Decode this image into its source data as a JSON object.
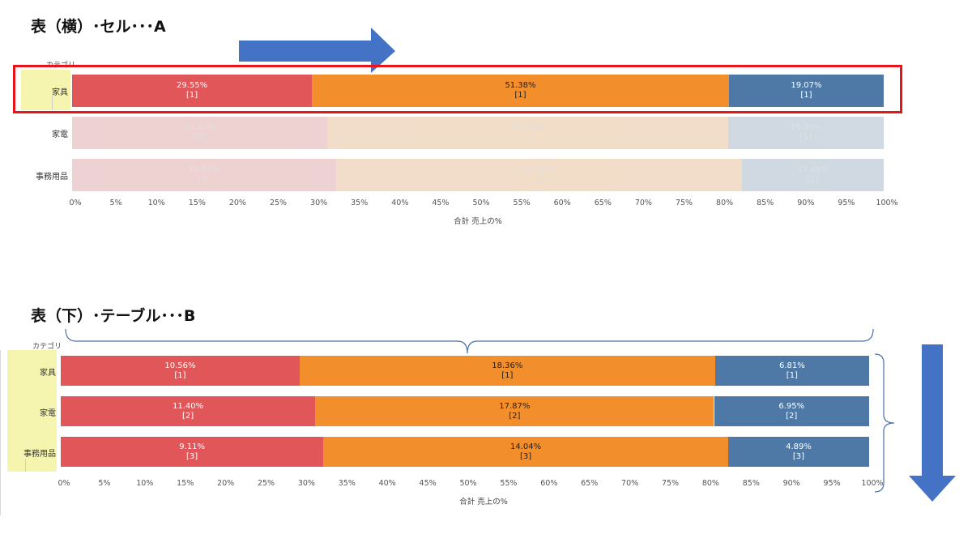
{
  "panel_a": {
    "heading": "表（横）･セル･･･A",
    "category_header": "カテゴリ",
    "axis_title": "合計 売上の%"
  },
  "panel_b": {
    "heading": "表（下）･テーブル･･･B",
    "category_header": "カテゴリ",
    "axis_title": "合計 売上の%"
  },
  "colors": {
    "red": "#e15759",
    "orange": "#f28e2b",
    "blue": "#4e79a7",
    "highlight": "#f5f5b0",
    "box": "#e8141a",
    "arrow": "#4472c4"
  },
  "chart_data": [
    {
      "type": "bar",
      "orientation": "horizontal",
      "stacked": true,
      "title": "表（横）･セル･･･A",
      "xlabel": "合計 売上の%",
      "ylabel": "カテゴリ",
      "xlim": [
        0,
        100
      ],
      "ticks": [
        "0%",
        "5%",
        "10%",
        "15%",
        "20%",
        "25%",
        "30%",
        "35%",
        "40%",
        "45%",
        "50%",
        "55%",
        "60%",
        "65%",
        "70%",
        "75%",
        "80%",
        "85%",
        "90%",
        "95%",
        "100%"
      ],
      "categories": [
        "家具",
        "家電",
        "事務用品"
      ],
      "highlighted_category": "家具",
      "series": [
        {
          "color": "#e15759",
          "values": [
            29.55,
            31.47,
            32.49
          ],
          "labels": [
            "29.55%",
            "31.47%",
            "32.49%"
          ],
          "ranks": [
            "[1]",
            "[1]",
            "[1]"
          ]
        },
        {
          "color": "#f28e2b",
          "values": [
            51.38,
            49.34,
            50.06
          ],
          "labels": [
            "51.38%",
            "49.34%",
            "50.06%"
          ],
          "ranks": [
            "[1]",
            "[1]",
            "[1]"
          ]
        },
        {
          "color": "#4e79a7",
          "values": [
            19.07,
            19.2,
            17.45
          ],
          "labels": [
            "19.07%",
            "19.20%",
            "17.45%"
          ],
          "ranks": [
            "[1]",
            "[1]",
            "[1]"
          ]
        }
      ]
    },
    {
      "type": "bar",
      "orientation": "horizontal",
      "stacked": true,
      "title": "表（下）･テーブル･･･B",
      "xlabel": "合計 売上の%",
      "ylabel": "カテゴリ",
      "xlim": [
        0,
        100
      ],
      "ticks": [
        "0%",
        "5%",
        "10%",
        "15%",
        "20%",
        "25%",
        "30%",
        "35%",
        "40%",
        "45%",
        "50%",
        "55%",
        "60%",
        "65%",
        "70%",
        "75%",
        "80%",
        "85%",
        "90%",
        "95%",
        "100%"
      ],
      "categories": [
        "家具",
        "家電",
        "事務用品"
      ],
      "series": [
        {
          "color": "#e15759",
          "values": [
            10.56,
            11.4,
            9.11
          ],
          "labels": [
            "10.56%",
            "11.40%",
            "9.11%"
          ],
          "ranks": [
            "[1]",
            "[2]",
            "[3]"
          ]
        },
        {
          "color": "#f28e2b",
          "values": [
            18.36,
            17.87,
            14.04
          ],
          "labels": [
            "18.36%",
            "17.87%",
            "14.04%"
          ],
          "ranks": [
            "[1]",
            "[2]",
            "[3]"
          ]
        },
        {
          "color": "#4e79a7",
          "values": [
            6.81,
            6.95,
            4.89
          ],
          "labels": [
            "6.81%",
            "6.95%",
            "4.89%"
          ],
          "ranks": [
            "[1]",
            "[2]",
            "[3]"
          ]
        }
      ]
    }
  ]
}
